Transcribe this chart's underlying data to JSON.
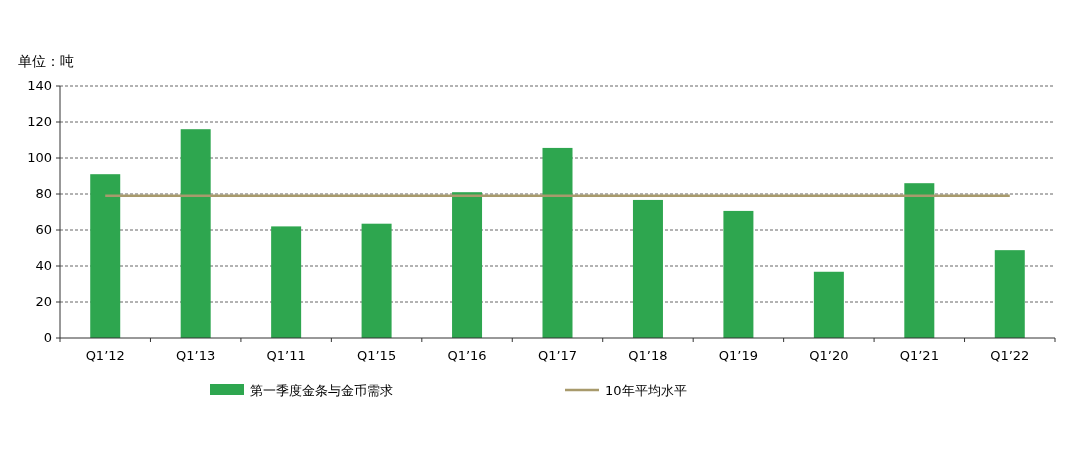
{
  "chart_data": {
    "type": "bar",
    "ylabel": "单位：吨",
    "categories": [
      "Q1’12",
      "Q1’13",
      "Q1’11",
      "Q1’15",
      "Q1’16",
      "Q1’17",
      "Q1’18",
      "Q1’19",
      "Q1’20",
      "Q1’21",
      "Q1’22"
    ],
    "series": [
      {
        "name": "第一季度金条与金币需求",
        "color": "#2ea64f",
        "values": [
          91,
          116,
          62,
          63.5,
          81,
          105.6,
          76.7,
          70.6,
          36.8,
          86,
          48.8
        ]
      },
      {
        "name": "10年平均水平",
        "type": "line",
        "color": "#a89a6c",
        "values": [
          79,
          79,
          79,
          79,
          79,
          79,
          79,
          79,
          79,
          79,
          79
        ]
      }
    ],
    "ylim": [
      0,
      140
    ],
    "yticks": [
      0,
      20,
      40,
      60,
      80,
      100,
      120,
      140
    ],
    "grid": "y",
    "legend": "bottom"
  }
}
